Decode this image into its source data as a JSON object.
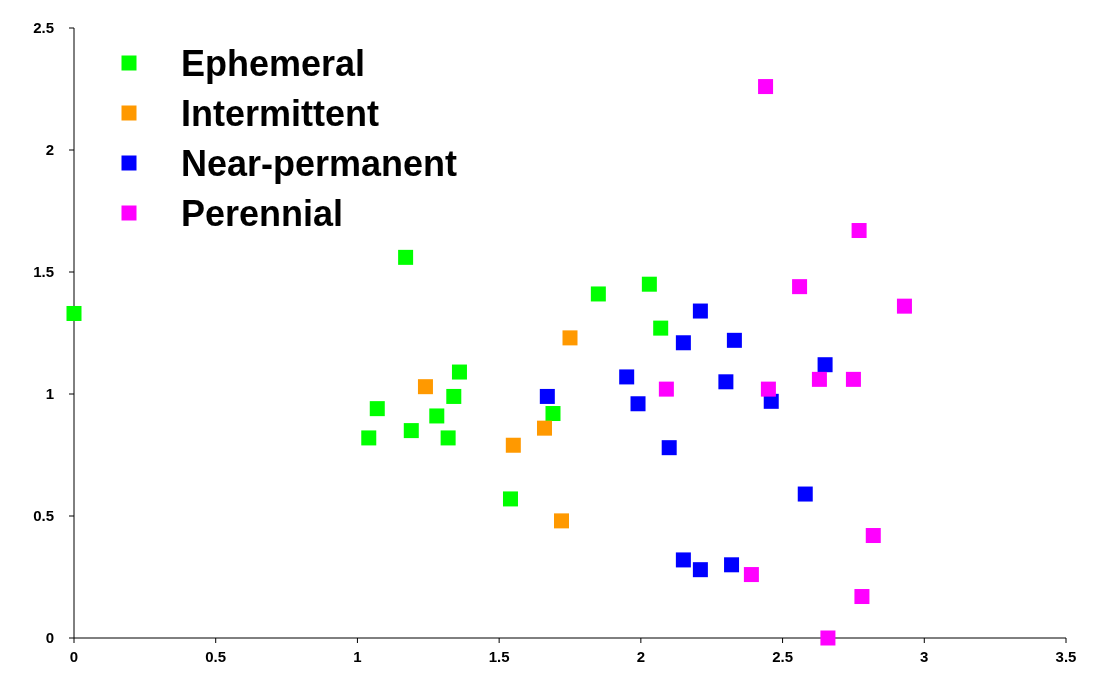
{
  "chart_data": {
    "type": "scatter",
    "marker": "square",
    "grid": false,
    "legend": "top left",
    "xlim": [
      0,
      3.5
    ],
    "xticks": [
      0,
      0.5,
      1,
      1.5,
      2,
      2.5,
      3,
      3.5
    ],
    "ylim": [
      0,
      2.5
    ],
    "yticks": [
      0,
      0.5,
      1,
      1.5,
      2,
      2.5
    ],
    "series": [
      {
        "name": "Ephemeral",
        "color": "#00ff00",
        "x": [
          0,
          1.17,
          1.04,
          1.07,
          1.19,
          1.28,
          1.32,
          1.34,
          1.36,
          1.54,
          1.69,
          1.85,
          2.03,
          2.07
        ],
        "values": [
          1.33,
          1.56,
          0.82,
          0.94,
          0.85,
          0.91,
          0.82,
          0.99,
          1.09,
          0.57,
          0.92,
          1.41,
          1.45,
          1.27
        ]
      },
      {
        "name": "Intermittent",
        "color": "#ff9900",
        "x": [
          1.24,
          1.55,
          1.66,
          1.75,
          1.72
        ],
        "values": [
          1.03,
          0.79,
          0.86,
          1.23,
          0.48
        ]
      },
      {
        "name": "Near-permanent",
        "color": "#0000ff",
        "x": [
          1.67,
          1.95,
          1.99,
          2.1,
          2.15,
          2.21,
          2.3,
          2.33,
          2.46,
          2.65,
          2.58,
          2.15,
          2.21,
          2.32
        ],
        "values": [
          0.99,
          1.07,
          0.96,
          0.78,
          1.21,
          1.34,
          1.05,
          1.22,
          0.97,
          1.12,
          0.59,
          0.32,
          0.28,
          0.3
        ]
      },
      {
        "name": "Perennial",
        "color": "#ff00ff",
        "x": [
          2.44,
          2.09,
          2.39,
          2.45,
          2.56,
          2.63,
          2.75,
          2.77,
          2.93,
          2.82,
          2.78,
          2.66
        ],
        "values": [
          2.26,
          1.02,
          0.26,
          1.02,
          1.44,
          1.06,
          1.06,
          1.67,
          1.36,
          0.42,
          0.17,
          0
        ]
      }
    ]
  }
}
